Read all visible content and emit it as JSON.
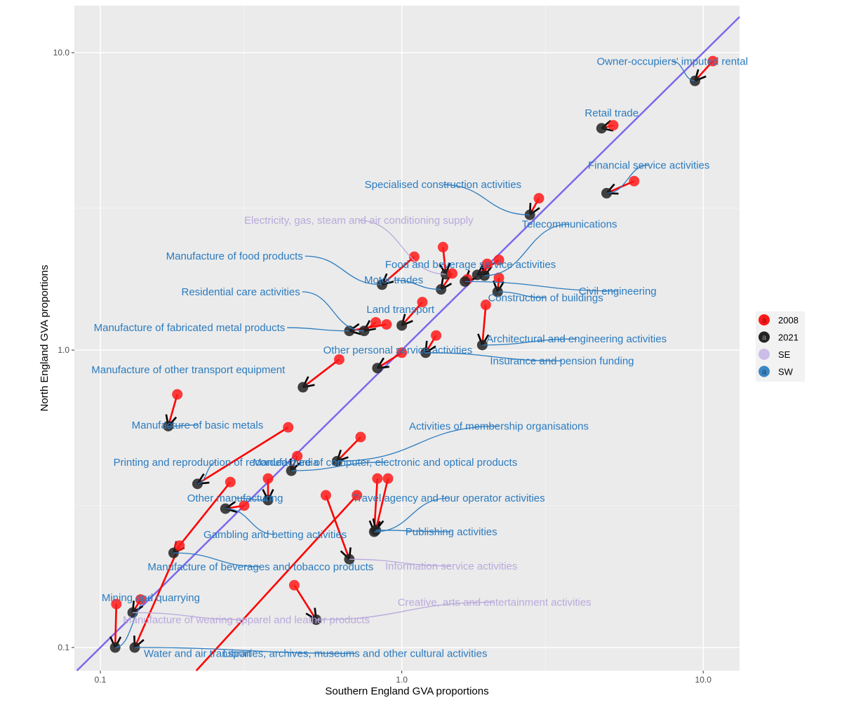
{
  "chart_data": {
    "type": "scatter",
    "xlabel": "Southern England GVA proportions",
    "ylabel": "North England GVA proportions",
    "x_scale": "log10",
    "y_scale": "log10",
    "xlim": [
      0.082,
      13.2
    ],
    "ylim": [
      0.0836,
      14.4
    ],
    "x_ticks": [
      0.1,
      1.0,
      10.0
    ],
    "y_ticks": [
      0.1,
      1.0,
      10.0
    ],
    "x_tick_labels": [
      "0.1",
      "1.0",
      "10.0"
    ],
    "y_tick_labels": [
      "0.1",
      "1.0",
      "10.0"
    ],
    "grid": true,
    "reference_line": {
      "type": "identity",
      "color": "#7b68ee"
    },
    "legend": {
      "placement": "right",
      "entries": [
        {
          "label": "2008",
          "color": "#ff1a1a",
          "glyph": "a"
        },
        {
          "label": "2021",
          "color": "#222222",
          "glyph": "a"
        },
        {
          "label": "SE",
          "color": "#cbbde8",
          "glyph": ""
        },
        {
          "label": "SW",
          "color": "#3b86c4",
          "glyph": "a"
        }
      ]
    },
    "colors": {
      "y2008": "#ff1a1a",
      "y2021": "#222222",
      "se": "#b9a9dc",
      "sw": "#2b7bbf",
      "arrow": "#ff0000",
      "identity": "#7b68ee"
    },
    "series": [
      {
        "label": "Owner-occupiers' imputed rental",
        "region": "SW",
        "x2008": 10.76,
        "y2008": 9.37,
        "x2021": 9.39,
        "y2021": 8.04,
        "label_x": 7.9,
        "label_y": 9.36,
        "label_anchor": "middle"
      },
      {
        "label": "Retail trade",
        "region": "SW",
        "x2008": 5.03,
        "y2008": 5.7,
        "x2021": 4.6,
        "y2021": 5.57,
        "label_x": 4.97,
        "label_y": 6.28,
        "label_anchor": "middle"
      },
      {
        "label": "Financial service activities",
        "region": "SW",
        "x2008": 5.9,
        "y2008": 3.7,
        "x2021": 4.78,
        "y2021": 3.37,
        "label_x": 6.6,
        "label_y": 4.19,
        "label_anchor": "middle"
      },
      {
        "label": "Specialised construction activities",
        "region": "SW",
        "x2008": 2.85,
        "y2008": 3.24,
        "x2021": 2.66,
        "y2021": 2.85,
        "label_x": 1.37,
        "label_y": 3.6,
        "label_anchor": "middle"
      },
      {
        "label": "Electricity, gas, steam and air conditioning supply",
        "region": "SE",
        "x2008": 1.37,
        "y2008": 2.22,
        "x2021": 1.4,
        "y2021": 1.8,
        "label_x": 0.72,
        "label_y": 2.73,
        "label_anchor": "middle"
      },
      {
        "label": "Telecommunications",
        "region": "SW",
        "x2008": 1.92,
        "y2008": 1.95,
        "x2021": 1.88,
        "y2021": 1.78,
        "label_x": 3.6,
        "label_y": 2.65,
        "label_anchor": "middle"
      },
      {
        "label": "Manufacture of food products",
        "region": "SW",
        "x2008": 1.1,
        "y2008": 2.06,
        "x2021": 0.86,
        "y2021": 1.66,
        "label_x": 0.47,
        "label_y": 2.07,
        "label_anchor": "end"
      },
      {
        "label": "Food and beverage service activities",
        "region": "SW",
        "x2008": 2.1,
        "y2008": 2.01,
        "x2021": 1.78,
        "y2021": 1.79,
        "label_x": 1.69,
        "label_y": 1.94,
        "label_anchor": "middle"
      },
      {
        "label": "Motor trades",
        "region": "SW",
        "x2008": 1.47,
        "y2008": 1.81,
        "x2021": 1.35,
        "y2021": 1.6,
        "label_x": 0.94,
        "label_y": 1.72,
        "label_anchor": "middle"
      },
      {
        "label": "Construction of buildings",
        "region": "SW",
        "x2008": 2.1,
        "y2008": 1.75,
        "x2021": 2.08,
        "y2021": 1.57,
        "label_x": 3.0,
        "label_y": 1.5,
        "label_anchor": "middle"
      },
      {
        "label": "Civil engineering",
        "region": "SW",
        "x2008": 1.65,
        "y2008": 1.73,
        "x2021": 1.62,
        "y2021": 1.7,
        "label_x": 5.2,
        "label_y": 1.58,
        "label_anchor": "middle"
      },
      {
        "label": "Residential care activities",
        "region": "SW",
        "x2008": 0.82,
        "y2008": 1.24,
        "x2021": 0.75,
        "y2021": 1.16,
        "label_x": 0.46,
        "label_y": 1.57,
        "label_anchor": "end"
      },
      {
        "label": "Land transport",
        "region": "SW",
        "x2008": 1.17,
        "y2008": 1.45,
        "x2021": 1.0,
        "y2021": 1.21,
        "label_x": 0.99,
        "label_y": 1.37,
        "label_anchor": "middle"
      },
      {
        "label": "Manufacture of fabricated metal products",
        "region": "SW",
        "x2008": 0.89,
        "y2008": 1.22,
        "x2021": 0.67,
        "y2021": 1.16,
        "label_x": 0.41,
        "label_y": 1.19,
        "label_anchor": "end"
      },
      {
        "label": "Architectural and engineering activities",
        "region": "SW",
        "x2008": 1.9,
        "y2008": 1.42,
        "x2021": 1.85,
        "y2021": 1.04,
        "label_x": 3.8,
        "label_y": 1.09,
        "label_anchor": "middle"
      },
      {
        "label": "Insurance and pension funding",
        "region": "SW",
        "x2008": 1.3,
        "y2008": 1.12,
        "x2021": 1.2,
        "y2021": 0.98,
        "label_x": 3.4,
        "label_y": 0.92,
        "label_anchor": "middle"
      },
      {
        "label": "Other personal service activities",
        "region": "SW",
        "x2008": 1.0,
        "y2008": 0.98,
        "x2021": 0.83,
        "y2021": 0.87,
        "label_x": 0.97,
        "label_y": 1.0,
        "label_anchor": "middle"
      },
      {
        "label": "Manufacture of other transport equipment",
        "region": "SW",
        "x2008": 0.62,
        "y2008": 0.93,
        "x2021": 0.47,
        "y2021": 0.75,
        "label_x": 0.41,
        "label_y": 0.86,
        "label_anchor": "end"
      },
      {
        "label": "Manufacture of basic metals",
        "region": "SW",
        "x2008": 0.18,
        "y2008": 0.71,
        "x2021": 0.168,
        "y2021": 0.555,
        "label_x": 0.21,
        "label_y": 0.56,
        "label_anchor": "middle"
      },
      {
        "label": "Activities of membership organisations",
        "region": "SW",
        "x2008": 0.73,
        "y2008": 0.51,
        "x2021": 0.61,
        "y2021": 0.423,
        "label_x": 2.1,
        "label_y": 0.555,
        "label_anchor": "middle"
      },
      {
        "label": "Printing and reproduction of recorded media",
        "region": "SW",
        "x2008": 0.42,
        "y2008": 0.55,
        "x2021": 0.21,
        "y2021": 0.355,
        "label_x": 0.242,
        "label_y": 0.42,
        "label_anchor": "middle"
      },
      {
        "label": "Manufacture of computer, electronic and optical products",
        "region": "SW",
        "x2008": 0.45,
        "y2008": 0.44,
        "x2021": 0.43,
        "y2021": 0.393,
        "label_x": 0.88,
        "label_y": 0.42,
        "label_anchor": "middle"
      },
      {
        "label": "Other manufacturing",
        "region": "SW",
        "x2008": 0.36,
        "y2008": 0.37,
        "x2021": 0.36,
        "y2021": 0.313,
        "label_x": 0.28,
        "label_y": 0.318,
        "label_anchor": "middle"
      },
      {
        "label": "Travel agency and tour operator activities",
        "region": "SW",
        "x2008": 0.83,
        "y2008": 0.37,
        "x2021": 0.81,
        "y2021": 0.245,
        "label_x": 1.43,
        "label_y": 0.318,
        "label_anchor": "middle"
      },
      {
        "label": "Gambling and betting activities",
        "region": "SW",
        "x2008": 0.3,
        "y2008": 0.3,
        "x2021": 0.26,
        "y2021": 0.293,
        "label_x": 0.38,
        "label_y": 0.24,
        "label_anchor": "middle"
      },
      {
        "label": "Publishing activities",
        "region": "SW",
        "x2008": 0.9,
        "y2008": 0.37,
        "x2021": 0.82,
        "y2021": 0.248,
        "label_x": 1.46,
        "label_y": 0.245,
        "label_anchor": "middle"
      },
      {
        "label": "Manufacture of beverages and tobacco products",
        "region": "SW",
        "x2008": 0.27,
        "y2008": 0.36,
        "x2021": 0.175,
        "y2021": 0.208,
        "label_x": 0.34,
        "label_y": 0.187,
        "label_anchor": "middle"
      },
      {
        "label": "Information service activities",
        "region": "SE",
        "x2008": 0.56,
        "y2008": 0.325,
        "x2021": 0.67,
        "y2021": 0.198,
        "label_x": 1.46,
        "label_y": 0.188,
        "label_anchor": "middle"
      },
      {
        "label": "Mining and quarrying",
        "region": "SW",
        "x2008": 0.113,
        "y2008": 0.14,
        "x2021": 0.112,
        "y2021": 0.1,
        "label_x": 0.147,
        "label_y": 0.147,
        "label_anchor": "middle"
      },
      {
        "label": "Creative, arts and entertainment activities",
        "region": "SE",
        "x2008": 0.44,
        "y2008": 0.162,
        "x2021": 0.52,
        "y2021": 0.124,
        "label_x": 2.03,
        "label_y": 0.142,
        "label_anchor": "middle"
      },
      {
        "label": "Manufacture of wearing apparel and leather products",
        "region": "SE",
        "x2008": 0.136,
        "y2008": 0.145,
        "x2021": 0.128,
        "y2021": 0.131,
        "label_x": 0.305,
        "label_y": 0.124,
        "label_anchor": "middle"
      },
      {
        "label": "Water and air transport",
        "region": "SW",
        "x2008": 0.71,
        "y2008": 0.325,
        "x2021": 0.2,
        "y2021": 0.08,
        "label_x": 0.21,
        "label_y": 0.0955,
        "label_anchor": "middle"
      },
      {
        "label": "Libraries, archives, museums and other cultural activities",
        "region": "SW",
        "x2008": 0.183,
        "y2008": 0.22,
        "x2021": 0.13,
        "y2021": 0.1,
        "label_x": 0.7,
        "label_y": 0.0955,
        "label_anchor": "middle"
      }
    ]
  }
}
